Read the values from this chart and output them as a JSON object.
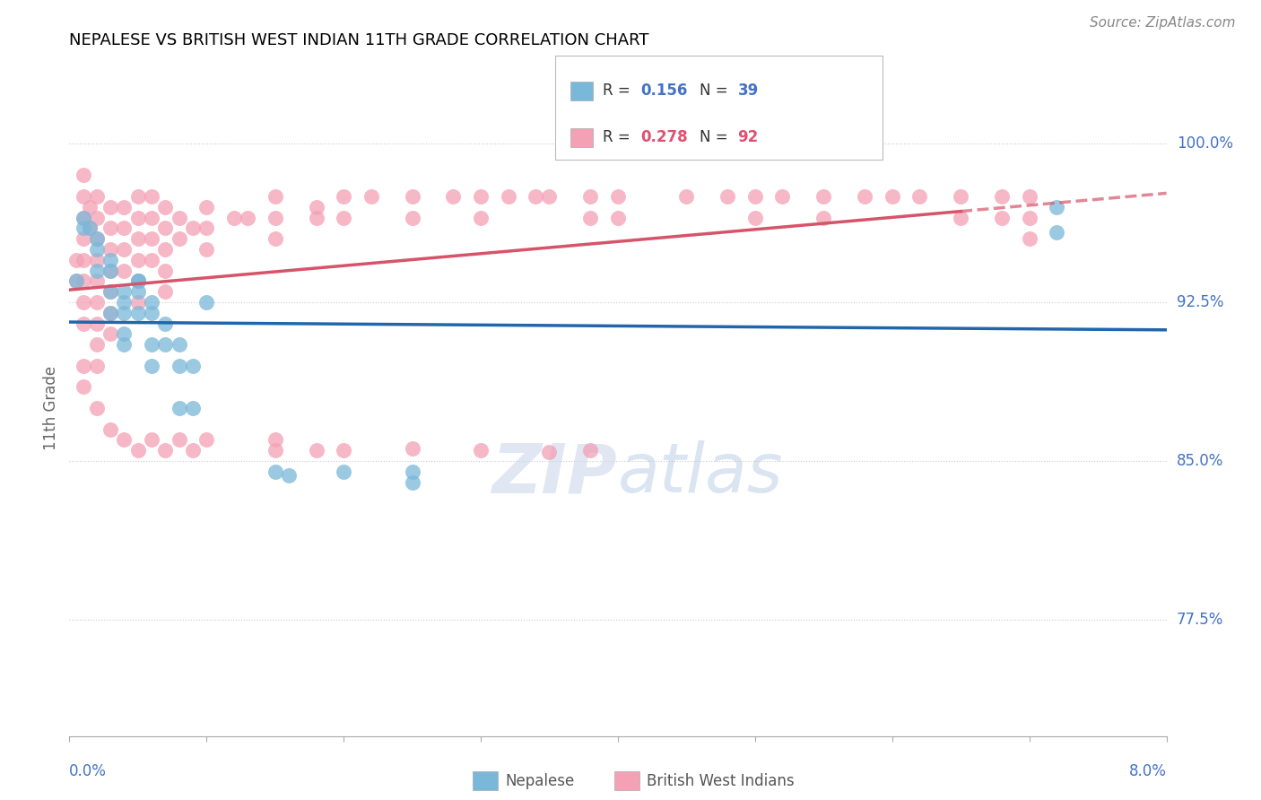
{
  "title": "NEPALESE VS BRITISH WEST INDIAN 11TH GRADE CORRELATION CHART",
  "source": "Source: ZipAtlas.com",
  "ylabel": "11th Grade",
  "ylabel_right_ticks": [
    "77.5%",
    "85.0%",
    "92.5%",
    "100.0%"
  ],
  "ylabel_right_vals": [
    0.775,
    0.85,
    0.925,
    1.0
  ],
  "xlim": [
    0.0,
    0.08
  ],
  "ylim": [
    0.72,
    1.03
  ],
  "R_nepalese": 0.156,
  "N_nepalese": 39,
  "R_bwi": 0.278,
  "N_bwi": 92,
  "color_nepalese": "#7ab8d9",
  "color_bwi": "#f4a0b5",
  "line_color_nepalese": "#2166ac",
  "line_color_bwi": "#d6546a",
  "nepalese_x": [
    0.0005,
    0.001,
    0.001,
    0.0015,
    0.002,
    0.002,
    0.002,
    0.003,
    0.003,
    0.003,
    0.003,
    0.004,
    0.004,
    0.004,
    0.004,
    0.004,
    0.005,
    0.005,
    0.005,
    0.005,
    0.006,
    0.006,
    0.006,
    0.006,
    0.007,
    0.007,
    0.008,
    0.008,
    0.008,
    0.009,
    0.009,
    0.01,
    0.015,
    0.016,
    0.02,
    0.025,
    0.025,
    0.072,
    0.072
  ],
  "nepalese_y": [
    0.935,
    0.965,
    0.96,
    0.96,
    0.955,
    0.95,
    0.94,
    0.945,
    0.94,
    0.93,
    0.92,
    0.93,
    0.925,
    0.92,
    0.91,
    0.905,
    0.935,
    0.935,
    0.93,
    0.92,
    0.925,
    0.92,
    0.905,
    0.895,
    0.915,
    0.905,
    0.905,
    0.895,
    0.875,
    0.895,
    0.875,
    0.925,
    0.845,
    0.843,
    0.845,
    0.84,
    0.845,
    0.97,
    0.958
  ],
  "bwi_x": [
    0.0005,
    0.0005,
    0.001,
    0.001,
    0.001,
    0.001,
    0.001,
    0.001,
    0.001,
    0.001,
    0.0015,
    0.0015,
    0.002,
    0.002,
    0.002,
    0.002,
    0.002,
    0.002,
    0.002,
    0.002,
    0.002,
    0.003,
    0.003,
    0.003,
    0.003,
    0.003,
    0.003,
    0.003,
    0.004,
    0.004,
    0.004,
    0.004,
    0.005,
    0.005,
    0.005,
    0.005,
    0.005,
    0.005,
    0.006,
    0.006,
    0.006,
    0.006,
    0.007,
    0.007,
    0.007,
    0.007,
    0.007,
    0.008,
    0.008,
    0.009,
    0.01,
    0.01,
    0.01,
    0.012,
    0.013,
    0.015,
    0.015,
    0.015,
    0.018,
    0.018,
    0.02,
    0.02,
    0.022,
    0.025,
    0.025,
    0.028,
    0.03,
    0.03,
    0.032,
    0.034,
    0.035,
    0.038,
    0.038,
    0.04,
    0.04,
    0.045,
    0.048,
    0.05,
    0.05,
    0.052,
    0.055,
    0.055,
    0.058,
    0.06,
    0.062,
    0.065,
    0.065,
    0.068,
    0.068,
    0.07,
    0.07,
    0.07
  ],
  "bwi_y": [
    0.945,
    0.935,
    0.985,
    0.975,
    0.965,
    0.955,
    0.945,
    0.935,
    0.925,
    0.915,
    0.97,
    0.96,
    0.975,
    0.965,
    0.955,
    0.945,
    0.935,
    0.925,
    0.915,
    0.905,
    0.895,
    0.97,
    0.96,
    0.95,
    0.94,
    0.93,
    0.92,
    0.91,
    0.97,
    0.96,
    0.95,
    0.94,
    0.975,
    0.965,
    0.955,
    0.945,
    0.935,
    0.925,
    0.975,
    0.965,
    0.955,
    0.945,
    0.97,
    0.96,
    0.95,
    0.94,
    0.93,
    0.965,
    0.955,
    0.96,
    0.97,
    0.96,
    0.95,
    0.965,
    0.965,
    0.975,
    0.965,
    0.955,
    0.97,
    0.965,
    0.975,
    0.965,
    0.975,
    0.975,
    0.965,
    0.975,
    0.975,
    0.965,
    0.975,
    0.975,
    0.975,
    0.975,
    0.965,
    0.975,
    0.965,
    0.975,
    0.975,
    0.975,
    0.965,
    0.975,
    0.975,
    0.965,
    0.975,
    0.975,
    0.975,
    0.975,
    0.965,
    0.975,
    0.965,
    0.975,
    0.965,
    0.955
  ],
  "bwi_lower_x": [
    0.001,
    0.001,
    0.002,
    0.003,
    0.004,
    0.005,
    0.006,
    0.007,
    0.008,
    0.009,
    0.01,
    0.015,
    0.015,
    0.018,
    0.02,
    0.025,
    0.03,
    0.035,
    0.038
  ],
  "bwi_lower_y": [
    0.895,
    0.885,
    0.875,
    0.865,
    0.86,
    0.855,
    0.86,
    0.855,
    0.86,
    0.855,
    0.86,
    0.86,
    0.855,
    0.855,
    0.855,
    0.856,
    0.855,
    0.854,
    0.855
  ]
}
